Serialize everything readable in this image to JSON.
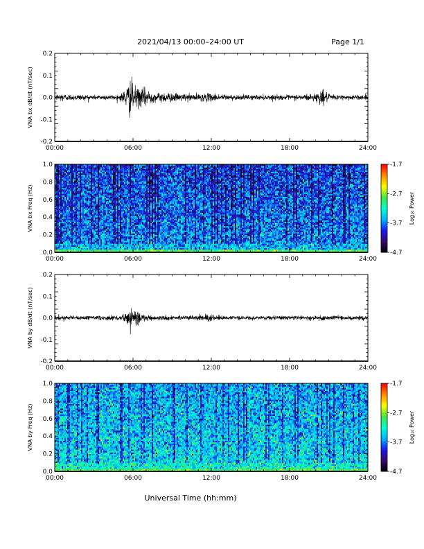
{
  "header": {
    "date_range": "2021/04/13  00:00–24:00 UT",
    "page": "Page 1/1"
  },
  "footer": {
    "xlabel": "Universal Time (hh:mm)"
  },
  "colors": {
    "trace": "#000000",
    "colormap": [
      "#000000",
      "#3a0a6a",
      "#1a1aee",
      "#00b4ff",
      "#00ffd2",
      "#46e646",
      "#ffff00",
      "#ff8c00",
      "#ff0000"
    ]
  },
  "chart_data": [
    {
      "type": "line",
      "id": "bx_dbdt",
      "ylabel": "VNA bx dB/dt (nT/sec)",
      "xlim": [
        0,
        24
      ],
      "ylim": [
        -0.2,
        0.2
      ],
      "x_ticks": [
        "00:00",
        "06:00",
        "12:00",
        "18:00",
        "24:00"
      ],
      "y_ticks": [
        "0.2",
        "0.1",
        "0.0",
        "-0.1",
        "-0.2"
      ],
      "y_tick_values": [
        0.2,
        0.1,
        0.0,
        -0.1,
        -0.2
      ],
      "baseline": 0.0,
      "envelope": [
        {
          "t": 0.0,
          "amp": 0.012
        },
        {
          "t": 0.5,
          "amp": 0.022
        },
        {
          "t": 1.0,
          "amp": 0.015
        },
        {
          "t": 2.0,
          "amp": 0.015
        },
        {
          "t": 3.0,
          "amp": 0.012
        },
        {
          "t": 4.0,
          "amp": 0.012
        },
        {
          "t": 5.0,
          "amp": 0.015
        },
        {
          "t": 5.6,
          "amp": 0.06
        },
        {
          "t": 5.8,
          "amp": 0.1
        },
        {
          "t": 6.2,
          "amp": 0.05
        },
        {
          "t": 6.8,
          "amp": 0.045
        },
        {
          "t": 7.0,
          "amp": 0.05
        },
        {
          "t": 7.5,
          "amp": 0.025
        },
        {
          "t": 8.0,
          "amp": 0.02
        },
        {
          "t": 8.5,
          "amp": 0.03
        },
        {
          "t": 9.0,
          "amp": 0.02
        },
        {
          "t": 10.0,
          "amp": 0.018
        },
        {
          "t": 11.0,
          "amp": 0.018
        },
        {
          "t": 12.0,
          "amp": 0.02
        },
        {
          "t": 13.0,
          "amp": 0.015
        },
        {
          "t": 14.0,
          "amp": 0.012
        },
        {
          "t": 15.0,
          "amp": 0.012
        },
        {
          "t": 16.0,
          "amp": 0.012
        },
        {
          "t": 17.0,
          "amp": 0.012
        },
        {
          "t": 18.0,
          "amp": 0.012
        },
        {
          "t": 19.0,
          "amp": 0.015
        },
        {
          "t": 20.0,
          "amp": 0.02
        },
        {
          "t": 20.5,
          "amp": 0.04
        },
        {
          "t": 21.0,
          "amp": 0.015
        },
        {
          "t": 22.0,
          "amp": 0.012
        },
        {
          "t": 23.0,
          "amp": 0.012
        },
        {
          "t": 24.0,
          "amp": 0.012
        }
      ]
    },
    {
      "type": "heatmap",
      "id": "bx_freq",
      "ylabel": "VNA bx Freq (Hz)",
      "xlim": [
        0,
        24
      ],
      "ylim": [
        0.0,
        1.0
      ],
      "x_ticks": [
        "00:00",
        "06:00",
        "12:00",
        "18:00",
        "24:00"
      ],
      "y_ticks": [
        "1.0",
        "0.8",
        "0.6",
        "0.4",
        "0.2",
        "0.0"
      ],
      "y_tick_values": [
        1.0,
        0.8,
        0.6,
        0.4,
        0.2,
        0.0
      ],
      "colorbar": {
        "label": "Log₁₀ Power",
        "ticks": [
          "-1.7",
          "-2.7",
          "-3.7",
          "-4.7"
        ],
        "tick_values": [
          -1.7,
          -2.7,
          -3.7,
          -4.7
        ],
        "range": [
          -4.7,
          -1.7
        ]
      },
      "typical_log_power": -3.9,
      "low_freq_log_power": -2.9
    },
    {
      "type": "line",
      "id": "by_dbdt",
      "ylabel": "VNA by dB/dt (nT/sec)",
      "xlim": [
        0,
        24
      ],
      "ylim": [
        -0.2,
        0.2
      ],
      "x_ticks": [
        "00:00",
        "06:00",
        "12:00",
        "18:00",
        "24:00"
      ],
      "y_ticks": [
        "0.2",
        "0.1",
        "0.0",
        "-0.1",
        "-0.2"
      ],
      "y_tick_values": [
        0.2,
        0.1,
        0.0,
        -0.1,
        -0.2
      ],
      "baseline": 0.0,
      "envelope": [
        {
          "t": 0.0,
          "amp": 0.01
        },
        {
          "t": 0.5,
          "amp": 0.015
        },
        {
          "t": 1.0,
          "amp": 0.01
        },
        {
          "t": 3.0,
          "amp": 0.01
        },
        {
          "t": 5.0,
          "amp": 0.012
        },
        {
          "t": 5.5,
          "amp": 0.03
        },
        {
          "t": 5.8,
          "amp": 0.055
        },
        {
          "t": 6.3,
          "amp": 0.04
        },
        {
          "t": 6.8,
          "amp": 0.02
        },
        {
          "t": 7.5,
          "amp": 0.012
        },
        {
          "t": 9.0,
          "amp": 0.01
        },
        {
          "t": 11.0,
          "amp": 0.012
        },
        {
          "t": 11.8,
          "amp": 0.02
        },
        {
          "t": 12.3,
          "amp": 0.015
        },
        {
          "t": 13.0,
          "amp": 0.01
        },
        {
          "t": 16.0,
          "amp": 0.01
        },
        {
          "t": 19.0,
          "amp": 0.01
        },
        {
          "t": 21.0,
          "amp": 0.012
        },
        {
          "t": 24.0,
          "amp": 0.01
        }
      ]
    },
    {
      "type": "heatmap",
      "id": "by_freq",
      "ylabel": "VNA by Freq (Hz)",
      "xlim": [
        0,
        24
      ],
      "ylim": [
        0.0,
        1.0
      ],
      "x_ticks": [
        "00:00",
        "06:00",
        "12:00",
        "18:00",
        "24:00"
      ],
      "y_ticks": [
        "1.0",
        "0.8",
        "0.6",
        "0.4",
        "0.2",
        "0.0"
      ],
      "y_tick_values": [
        1.0,
        0.8,
        0.6,
        0.4,
        0.2,
        0.0
      ],
      "colorbar": {
        "label": "Log₁₀ Power",
        "ticks": [
          "-1.7",
          "-2.7",
          "-3.7",
          "-4.7"
        ],
        "tick_values": [
          -1.7,
          -2.7,
          -3.7,
          -4.7
        ],
        "range": [
          -4.7,
          -1.7
        ]
      },
      "typical_log_power": -3.6,
      "low_freq_log_power": -2.9
    }
  ]
}
